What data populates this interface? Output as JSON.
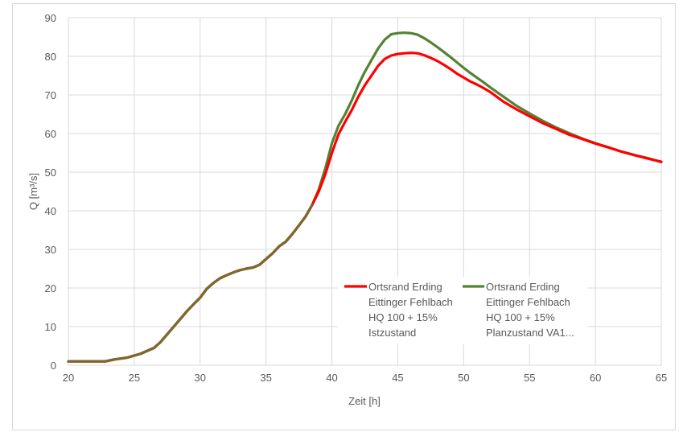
{
  "chart_data": {
    "type": "line",
    "xlabel": "Zeit [h]",
    "ylabel": "Q [m³/s]",
    "xlim": [
      20,
      65
    ],
    "ylim": [
      0,
      90
    ],
    "x_ticks": [
      "20",
      "25",
      "30",
      "35",
      "40",
      "45",
      "50",
      "55",
      "60",
      "65"
    ],
    "y_ticks": [
      "0",
      "10",
      "20",
      "30",
      "40",
      "50",
      "60",
      "70",
      "80",
      "90"
    ],
    "grid": "both",
    "legend_position": "inside-lower-right",
    "series": [
      {
        "name_lines": [
          "Ortsrand Erding",
          "Eittinger Fehlbach",
          "HQ 100 + 15%",
          "Istzustand"
        ],
        "color": "#ff0000",
        "x": [
          20,
          21,
          22,
          22.8,
          23.5,
          24.5,
          25.5,
          26.5,
          27,
          27.5,
          28,
          28.5,
          29,
          29.5,
          30,
          30.5,
          31,
          31.5,
          32,
          32.5,
          33,
          33.5,
          34,
          34.5,
          35,
          35.5,
          36,
          36.5,
          37,
          37.5,
          38,
          38.5,
          39,
          39.5,
          40,
          40.5,
          41,
          41.5,
          42,
          42.5,
          43,
          43.5,
          44,
          44.5,
          45,
          45.5,
          46,
          46.5,
          47,
          47.5,
          48,
          48.5,
          49,
          49.5,
          50,
          50.5,
          51,
          51.5,
          52,
          53,
          54,
          55,
          56,
          57,
          58,
          59,
          60,
          61,
          62,
          63,
          64,
          65
        ],
        "y": [
          1,
          1,
          1,
          1,
          1.5,
          2,
          3,
          4.5,
          6,
          8,
          10,
          12,
          14,
          15.8,
          17.5,
          19.8,
          21.3,
          22.5,
          23.3,
          24,
          24.6,
          25,
          25.3,
          26,
          27.5,
          29,
          30.8,
          32,
          34,
          36.2,
          38.5,
          41.5,
          45,
          49.5,
          55,
          59.8,
          63,
          66,
          69.5,
          72.5,
          75,
          77.5,
          79.3,
          80.2,
          80.6,
          80.8,
          80.9,
          80.8,
          80.3,
          79.6,
          78.8,
          77.8,
          76.7,
          75.5,
          74.5,
          73.5,
          72.7,
          71.8,
          70.8,
          68.3,
          66.3,
          64.5,
          62.7,
          61.2,
          59.7,
          58.6,
          57.4,
          56.4,
          55.3,
          54.4,
          53.5,
          52.7
        ]
      },
      {
        "name_lines": [
          "Ortsrand Erding",
          "Eittinger Fehlbach",
          "HQ 100 + 15%",
          "Planzustand VA1..."
        ],
        "color": "#548235",
        "x": [
          20,
          21,
          22,
          22.8,
          23.5,
          24.5,
          25.5,
          26.5,
          27,
          27.5,
          28,
          28.5,
          29,
          29.5,
          30,
          30.5,
          31,
          31.5,
          32,
          32.5,
          33,
          33.5,
          34,
          34.5,
          35,
          35.5,
          36,
          36.5,
          37,
          37.5,
          38,
          38.5,
          39,
          39.5,
          40,
          40.5,
          41,
          41.5,
          42,
          42.5,
          43,
          43.5,
          44,
          44.5,
          45,
          45.5,
          46,
          46.5,
          47,
          47.5,
          48,
          48.5,
          49,
          49.5,
          50,
          50.5,
          51,
          51.5,
          52,
          53,
          54,
          55,
          56,
          57,
          58,
          59,
          60,
          61,
          62,
          63,
          64,
          65
        ],
        "y": [
          1,
          1,
          1,
          1,
          1.5,
          2,
          3,
          4.5,
          6,
          8,
          10,
          12,
          14,
          15.8,
          17.5,
          19.8,
          21.3,
          22.5,
          23.3,
          24,
          24.6,
          25,
          25.3,
          26,
          27.5,
          29,
          30.8,
          32,
          34,
          36.2,
          38.5,
          41.5,
          45.5,
          51,
          57.5,
          62,
          65,
          68.5,
          72.5,
          76,
          79,
          82,
          84.3,
          85.7,
          86,
          86.1,
          86,
          85.6,
          84.7,
          83.6,
          82.4,
          81.1,
          79.8,
          78.4,
          77,
          75.7,
          74.5,
          73.3,
          72,
          69.6,
          67.2,
          65.2,
          63.3,
          61.6,
          60.1,
          58.7,
          57.5,
          56.4,
          55.3,
          54.4,
          53.6,
          52.6
        ]
      }
    ]
  }
}
